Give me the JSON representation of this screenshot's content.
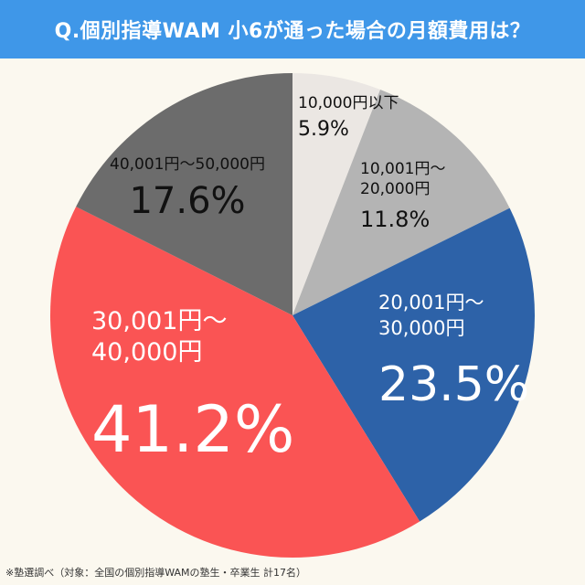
{
  "header": {
    "title": "Q.個別指導WAM 小6が通った場合の月額費用は？"
  },
  "chart_data": {
    "type": "pie",
    "title": "Q.個別指導WAM 小6が通った場合の月額費用は？",
    "slices": [
      {
        "label_lines": [
          "10,000円以下"
        ],
        "pct_label": "5.9%",
        "value": 5.9,
        "color": "#ebe7e3"
      },
      {
        "label_lines": [
          "10,001円～",
          "20,000円"
        ],
        "pct_label": "11.8%",
        "value": 11.8,
        "color": "#b4b4b4"
      },
      {
        "label_lines": [
          "20,001円～",
          "30,000円"
        ],
        "pct_label": "23.5%",
        "value": 23.5,
        "color": "#2d62a8"
      },
      {
        "label_lines": [
          "30,001円～",
          "40,000円"
        ],
        "pct_label": "41.2%",
        "value": 41.2,
        "color": "#fa5454"
      },
      {
        "label_lines": [
          "40,001円～50,000円"
        ],
        "pct_label": "17.6%",
        "value": 17.6,
        "color": "#6c6c6c"
      }
    ]
  },
  "footnote": "※塾選調べ（対象：全国の個別指導WAMの塾生・卒業生 計17名）"
}
